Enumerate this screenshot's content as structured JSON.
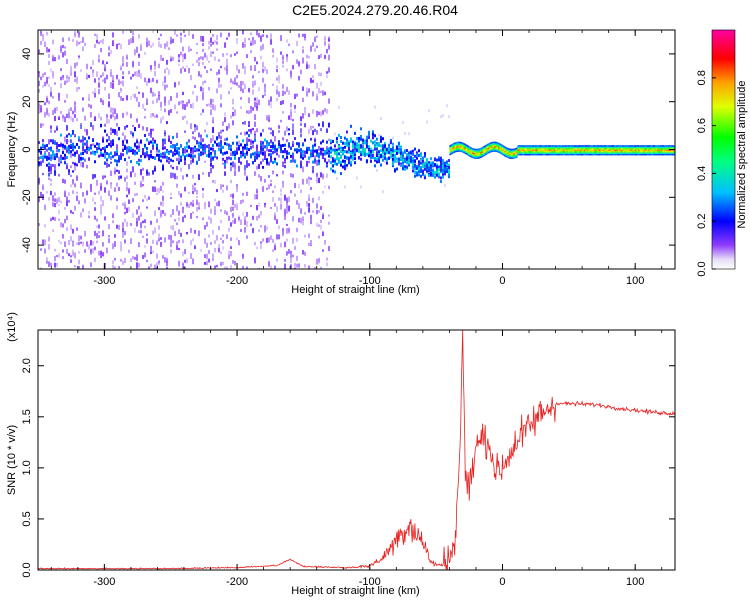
{
  "title": "C2E5.2024.279.20.46.R04",
  "chart_data": [
    {
      "type": "heatmap",
      "xlabel": "Height of straight line (km)",
      "ylabel": "Frequency (Hz)",
      "xlim": [
        -350,
        130
      ],
      "ylim": [
        -50,
        50
      ],
      "xticks": [
        "-300",
        "-200",
        "-100",
        "0",
        "100"
      ],
      "xtick_values": [
        -300,
        -200,
        -100,
        0,
        100
      ],
      "yticks": [
        "40",
        "20",
        "0",
        "-20",
        "-40"
      ],
      "ytick_values": [
        40,
        20,
        0,
        -20,
        -40
      ],
      "colorbar": {
        "label": "Normalized spectral amplitude",
        "range": [
          0,
          1
        ],
        "ticks": [
          "0.0",
          "0.2",
          "0.4",
          "0.6",
          "0.8"
        ],
        "tick_values": [
          0.0,
          0.2,
          0.4,
          0.6,
          0.8
        ],
        "colormap": [
          "#d6c8f0",
          "#7a00ff",
          "#0000ff",
          "#00c8ff",
          "#00ff80",
          "#00ff00",
          "#c8ff00",
          "#ffff00",
          "#ff8000",
          "#ff0000",
          "#ff00a0"
        ]
      },
      "regions": [
        {
          "x": [
            -350,
            -130
          ],
          "spread_hz": 50,
          "center_hz": 0,
          "amplitude": 0.12,
          "description": "broadband noise"
        },
        {
          "x": [
            -130,
            -40
          ],
          "spread_hz": 12,
          "center_hz": -2,
          "amplitude": 0.25,
          "description": "signal emerging"
        },
        {
          "x": [
            -40,
            130
          ],
          "spread_hz": 2,
          "center_hz": 0,
          "amplitude": 0.85,
          "description": "carrier line"
        }
      ]
    },
    {
      "type": "line",
      "xlabel": "Height of straight line (km)",
      "ylabel": "SNR (10 * v/v)",
      "y_multiplier": "(x10⁴)",
      "xlim": [
        -350,
        130
      ],
      "ylim": [
        0,
        2.35
      ],
      "xticks": [
        "-300",
        "-200",
        "-100",
        "0",
        "100"
      ],
      "xtick_values": [
        -300,
        -200,
        -100,
        0,
        100
      ],
      "yticks": [
        "0.0",
        "0.5",
        "1.0",
        "1.5",
        "2.0"
      ],
      "ytick_values": [
        0.0,
        0.5,
        1.0,
        1.5,
        2.0
      ],
      "color": "#e82020",
      "series": [
        {
          "x": [
            -350,
            -300,
            -250,
            -200,
            -170,
            -160,
            -150,
            -120,
            -100,
            -90,
            -80,
            -70,
            -60,
            -55,
            -50,
            -45,
            -40,
            -35,
            -32,
            -30,
            -28,
            -25,
            -20,
            -15,
            -10,
            -5,
            0,
            10,
            20,
            30,
            40,
            50,
            70,
            90,
            110,
            130
          ],
          "y": [
            0.01,
            0.01,
            0.01,
            0.02,
            0.04,
            0.1,
            0.03,
            0.02,
            0.04,
            0.12,
            0.3,
            0.45,
            0.28,
            0.1,
            0.05,
            0.05,
            0.1,
            0.4,
            1.2,
            2.3,
            0.9,
            0.8,
            1.2,
            1.3,
            1.25,
            0.95,
            1.0,
            1.25,
            1.4,
            1.55,
            1.63,
            1.63,
            1.62,
            1.58,
            1.55,
            1.53
          ]
        }
      ]
    }
  ]
}
